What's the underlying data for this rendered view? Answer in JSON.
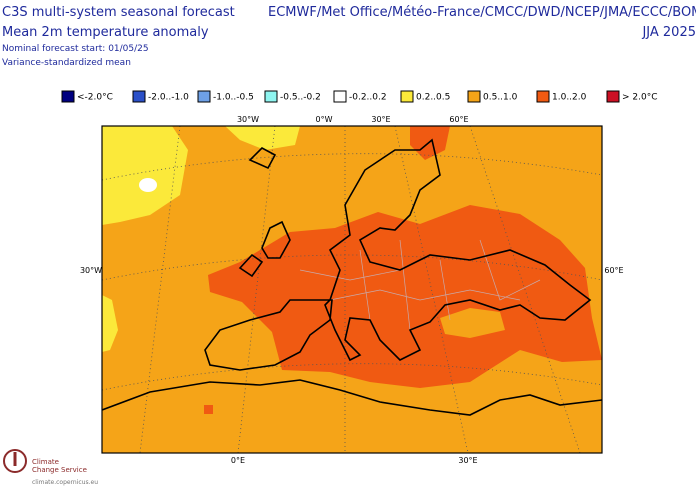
{
  "header": {
    "title": "C3S multi-system seasonal forecast",
    "subtitle": "Mean 2m temperature anomaly",
    "start": "Nominal forecast start: 01/05/25",
    "method": "Variance-standardized mean",
    "providers": "ECMWF/Met Office/Météo-France/CMCC/DWD/NCEP/JMA/ECCC/BOM",
    "period": "JJA 2025"
  },
  "legend": {
    "items": [
      {
        "label": "<-2.0°C",
        "color": "#000080"
      },
      {
        "label": "-2.0..-1.0",
        "color": "#2b50c8"
      },
      {
        "label": "-1.0..-0.5",
        "color": "#6ea0e6"
      },
      {
        "label": "-0.5..-0.2",
        "color": "#8ff5f0"
      },
      {
        "label": "-0.2..0.2",
        "color": "#ffffff"
      },
      {
        "label": "0.2..0.5",
        "color": "#fbe93a"
      },
      {
        "label": "0.5..1.0",
        "color": "#f5a418"
      },
      {
        "label": "1.0..2.0",
        "color": "#f05a12"
      },
      {
        "label": "> 2.0°C",
        "color": "#cc1024"
      }
    ]
  },
  "map": {
    "grid_labels": {
      "top": [
        "30°W",
        "0°W",
        "30°E",
        "60°E"
      ],
      "left": [
        "30°W"
      ],
      "right": [
        "60°E"
      ],
      "bottom": [
        "0°E",
        "30°E"
      ]
    }
  },
  "logo": {
    "line1": "Climate",
    "line2": "Change Service",
    "url": "climate.copernicus.eu"
  }
}
